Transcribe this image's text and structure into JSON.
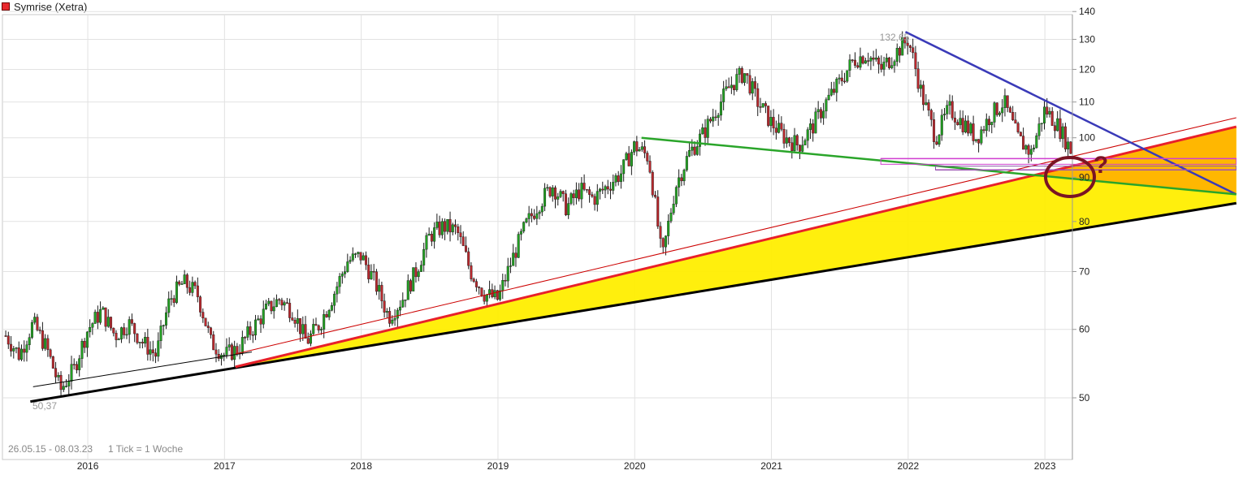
{
  "header": {
    "title": "Symrise (Xetra)",
    "legend_color": "#e8282d"
  },
  "footer": {
    "date_range": "26.05.15 - 08.03.23",
    "tick_note": "1 Tick = 1 Woche"
  },
  "annotations": {
    "high_label": "132,65",
    "low_label": "50,37",
    "question_mark": "?"
  },
  "chart_data": {
    "type": "candlestick",
    "title": "Symrise (Xetra)",
    "scale": "log",
    "ylim": [
      41,
      148
    ],
    "xlim": [
      2015.4,
      2023.5
    ],
    "y_ticks": [
      50,
      60,
      70,
      80,
      90,
      100,
      110,
      120,
      130,
      140
    ],
    "x_ticks": [
      "2016",
      "2017",
      "2018",
      "2019",
      "2020",
      "2021",
      "2022",
      "2023"
    ],
    "grid": true,
    "y_axis_side": "right",
    "period": "weekly",
    "price_path": [
      [
        2015.4,
        59
      ],
      [
        2015.5,
        56
      ],
      [
        2015.6,
        61
      ],
      [
        2015.7,
        57
      ],
      [
        2015.8,
        51
      ],
      [
        2015.9,
        54
      ],
      [
        2016.0,
        60
      ],
      [
        2016.1,
        63
      ],
      [
        2016.2,
        59
      ],
      [
        2016.3,
        61
      ],
      [
        2016.4,
        58
      ],
      [
        2016.5,
        56
      ],
      [
        2016.6,
        65
      ],
      [
        2016.7,
        68
      ],
      [
        2016.8,
        66
      ],
      [
        2016.9,
        58
      ],
      [
        2017.0,
        56
      ],
      [
        2017.1,
        57
      ],
      [
        2017.2,
        60
      ],
      [
        2017.3,
        63
      ],
      [
        2017.4,
        65
      ],
      [
        2017.5,
        63
      ],
      [
        2017.6,
        58
      ],
      [
        2017.7,
        61
      ],
      [
        2017.8,
        66
      ],
      [
        2017.9,
        72
      ],
      [
        2018.0,
        73
      ],
      [
        2018.1,
        68
      ],
      [
        2018.2,
        62
      ],
      [
        2018.3,
        65
      ],
      [
        2018.4,
        70
      ],
      [
        2018.5,
        77
      ],
      [
        2018.6,
        79
      ],
      [
        2018.7,
        78
      ],
      [
        2018.8,
        70
      ],
      [
        2018.9,
        66
      ],
      [
        2019.0,
        65
      ],
      [
        2019.1,
        72
      ],
      [
        2019.2,
        79
      ],
      [
        2019.3,
        84
      ],
      [
        2019.4,
        88
      ],
      [
        2019.5,
        83
      ],
      [
        2019.6,
        87
      ],
      [
        2019.7,
        85
      ],
      [
        2019.8,
        88
      ],
      [
        2019.9,
        91
      ],
      [
        2020.0,
        98
      ],
      [
        2020.1,
        95
      ],
      [
        2020.2,
        72
      ],
      [
        2020.3,
        88
      ],
      [
        2020.4,
        96
      ],
      [
        2020.5,
        101
      ],
      [
        2020.6,
        108
      ],
      [
        2020.7,
        115
      ],
      [
        2020.8,
        119
      ],
      [
        2020.9,
        110
      ],
      [
        2021.0,
        104
      ],
      [
        2021.1,
        100
      ],
      [
        2021.2,
        98
      ],
      [
        2021.3,
        103
      ],
      [
        2021.4,
        110
      ],
      [
        2021.5,
        116
      ],
      [
        2021.6,
        123
      ],
      [
        2021.7,
        125
      ],
      [
        2021.8,
        120
      ],
      [
        2021.9,
        125
      ],
      [
        2022.0,
        130
      ],
      [
        2022.1,
        112
      ],
      [
        2022.2,
        100
      ],
      [
        2022.3,
        108
      ],
      [
        2022.4,
        104
      ],
      [
        2022.5,
        100
      ],
      [
        2022.6,
        106
      ],
      [
        2022.7,
        110
      ],
      [
        2022.8,
        100
      ],
      [
        2022.9,
        96
      ],
      [
        2023.0,
        108
      ],
      [
        2023.1,
        103
      ],
      [
        2023.2,
        96
      ]
    ],
    "trendlines": [
      {
        "name": "support-black",
        "color": "#000000",
        "points": [
          [
            2015.58,
            49.5
          ],
          [
            2024.4,
            84
          ]
        ]
      },
      {
        "name": "support-thin-black",
        "color": "#000000",
        "points": [
          [
            2015.6,
            51.5
          ],
          [
            2017.2,
            56.5
          ]
        ]
      },
      {
        "name": "support-red",
        "color": "#e8202a",
        "points": [
          [
            2017.08,
            54.3
          ],
          [
            2024.4,
            103
          ]
        ]
      },
      {
        "name": "support-red-thin",
        "color": "#cc0000",
        "points": [
          [
            2017.08,
            56.2
          ],
          [
            2024.4,
            105.5
          ]
        ]
      },
      {
        "name": "resistance-blue",
        "color": "#3a3ab8",
        "points": [
          [
            2021.98,
            132.6
          ],
          [
            2024.4,
            86
          ]
        ]
      },
      {
        "name": "neckline-green",
        "color": "#2aa52a",
        "points": [
          [
            2020.05,
            100
          ],
          [
            2024.4,
            86
          ]
        ]
      },
      {
        "name": "zone-magenta-top",
        "color": "#d040d0",
        "points": [
          [
            2021.8,
            94.6
          ],
          [
            2024.4,
            94.6
          ]
        ]
      },
      {
        "name": "zone-magenta-bottom",
        "color": "#d040d0",
        "points": [
          [
            2022.2,
            91.8
          ],
          [
            2024.4,
            91.8
          ]
        ]
      }
    ]
  }
}
